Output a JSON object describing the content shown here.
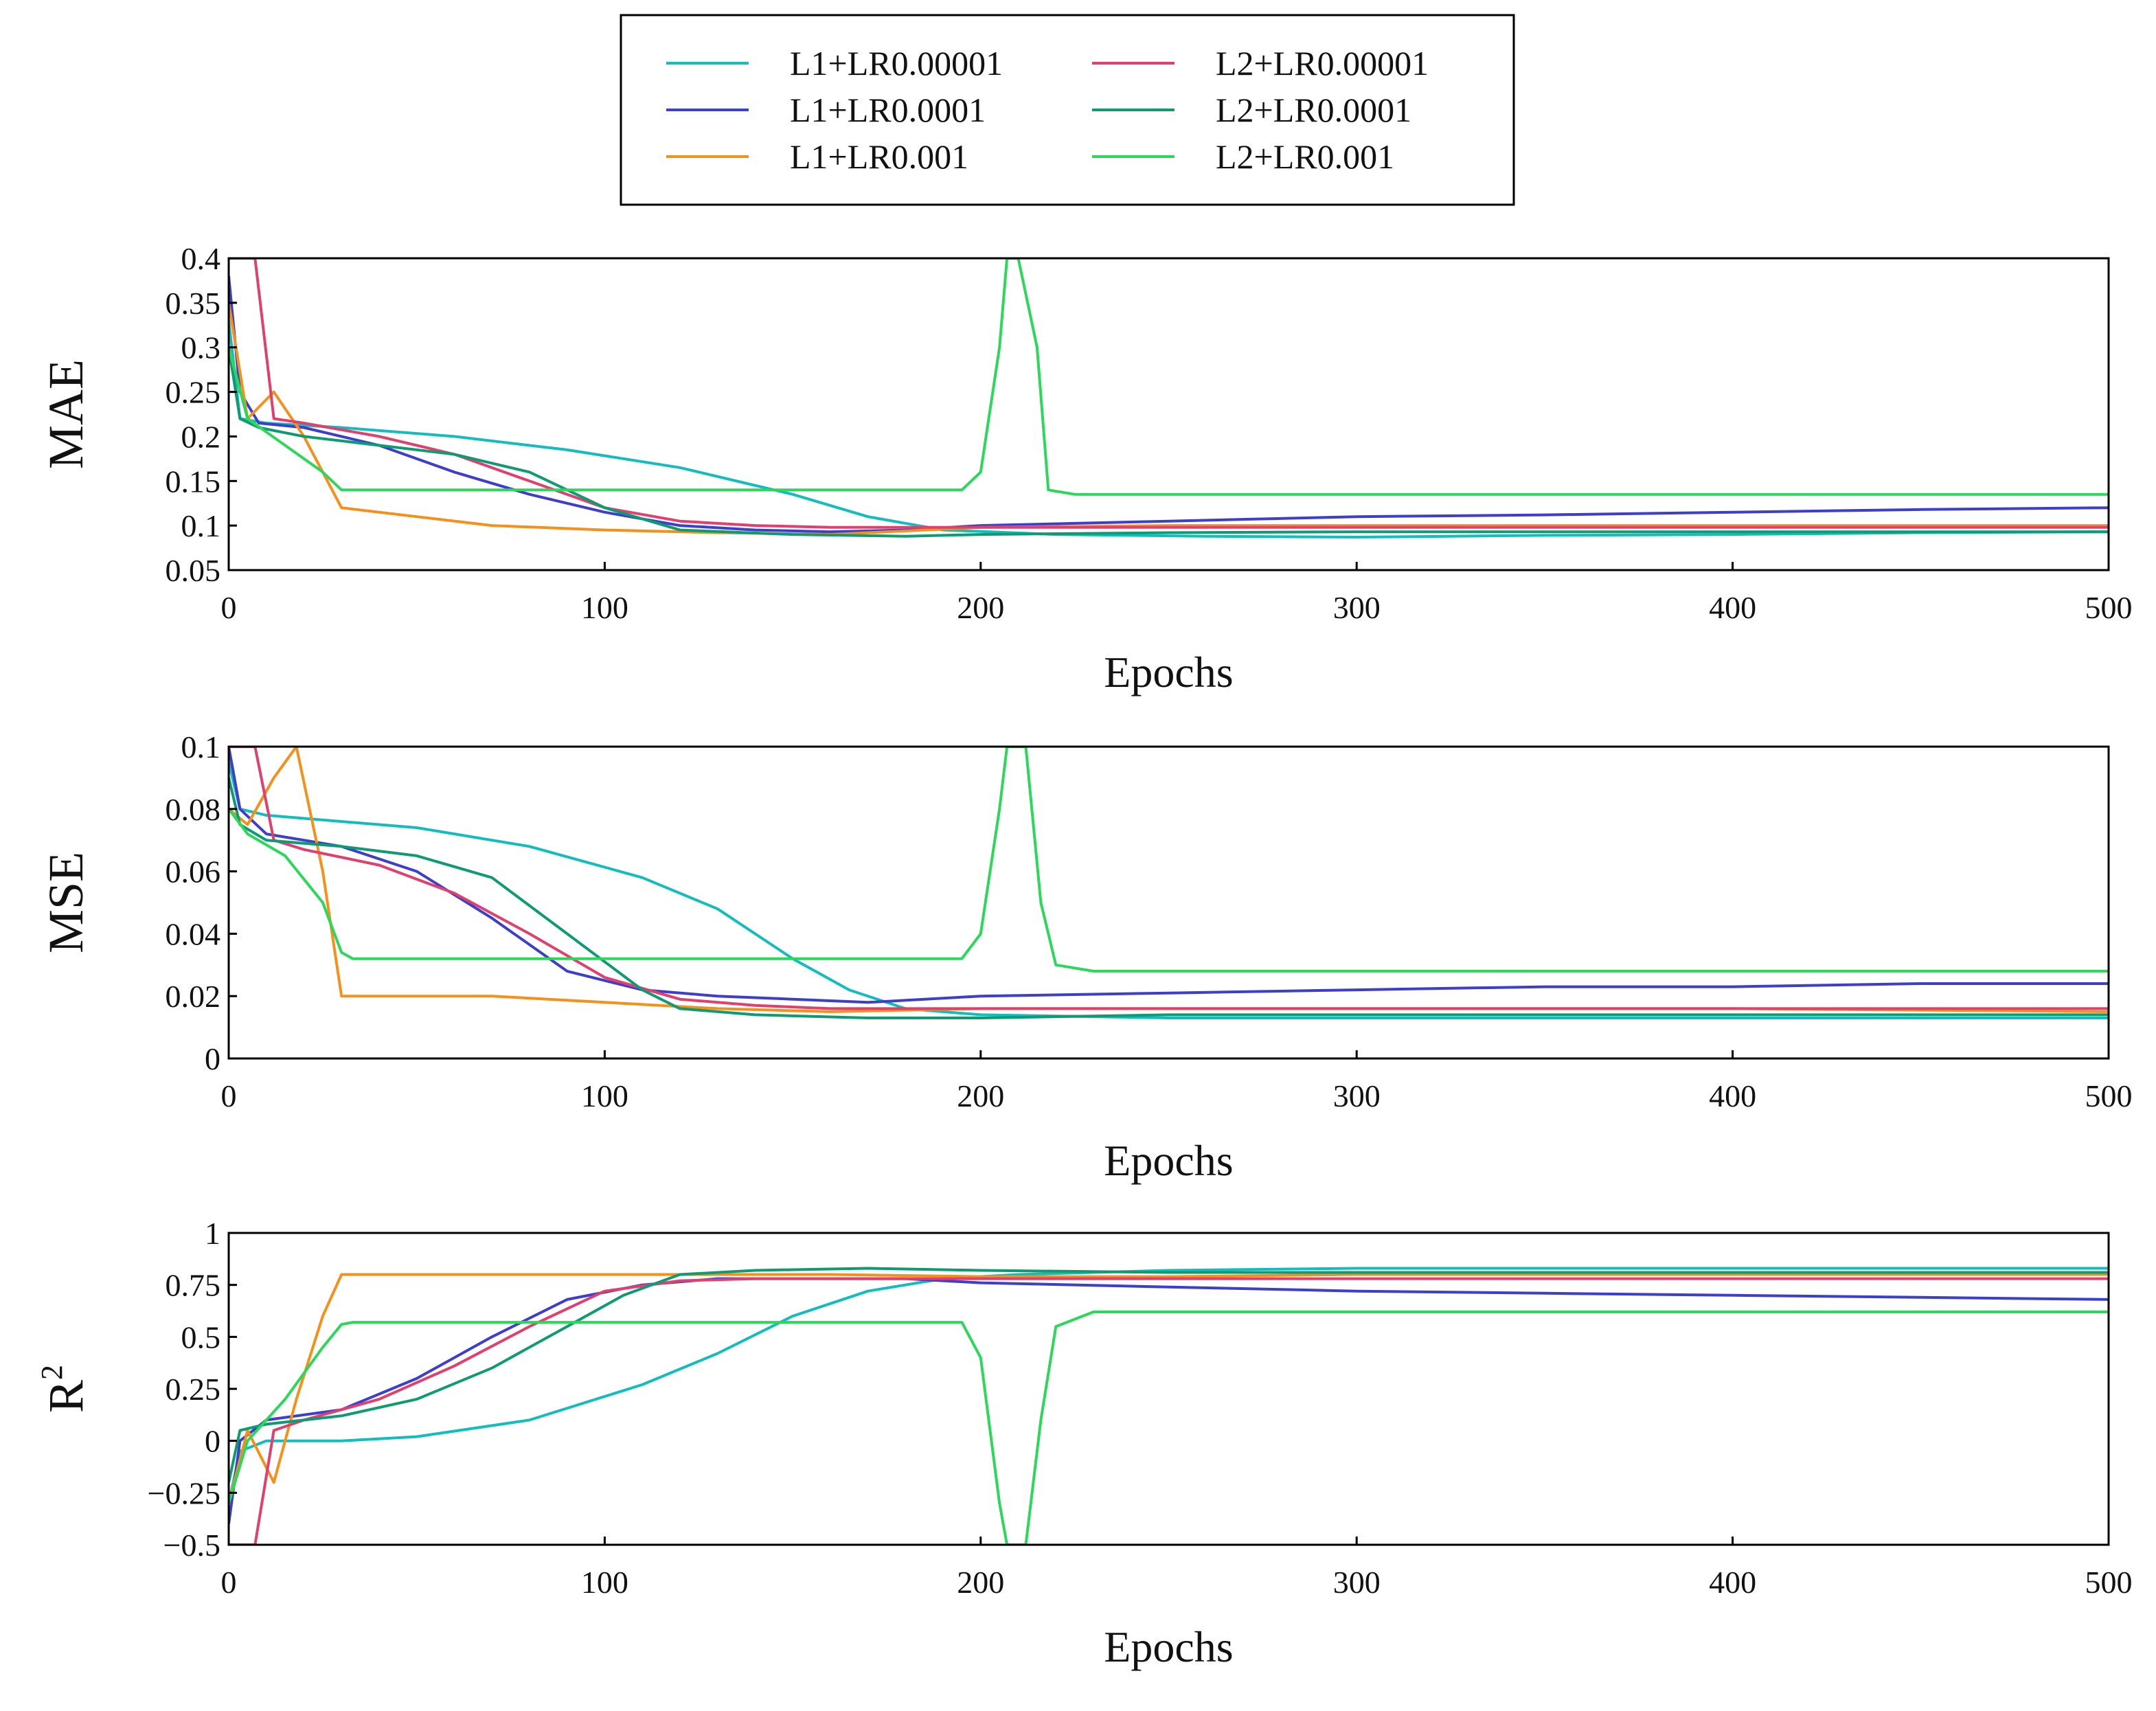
{
  "legend": {
    "entries": [
      {
        "label": "L1+LR0.00001",
        "color": "#14BDBD"
      },
      {
        "label": "L1+LR0.0001",
        "color": "#3E3ECC"
      },
      {
        "label": "L1+LR0.001",
        "color": "#F5901A"
      },
      {
        "label": "L2+LR0.00001",
        "color": "#E0406E"
      },
      {
        "label": "L2+LR0.0001",
        "color": "#0E9B73"
      },
      {
        "label": "L2+LR0.001",
        "color": "#2CD85A"
      }
    ]
  },
  "chart_data": [
    {
      "type": "line",
      "title": "",
      "xlabel": "Epochs",
      "ylabel": "MAE",
      "xlim": [
        0,
        500
      ],
      "ylim": [
        0.05,
        0.4
      ],
      "xticks": [
        "0",
        "100",
        "200",
        "300",
        "400",
        "500"
      ],
      "yticks": [
        "0.05",
        "0.1",
        "0.15",
        "0.2",
        "0.25",
        "0.3",
        "0.35",
        "0.4"
      ],
      "series": [
        {
          "name": "L1+LR0.00001",
          "x": [
            0,
            3,
            10,
            30,
            60,
            90,
            120,
            150,
            170,
            190,
            220,
            260,
            300,
            350,
            400,
            450,
            500
          ],
          "values": [
            0.33,
            0.22,
            0.215,
            0.21,
            0.2,
            0.185,
            0.165,
            0.135,
            0.11,
            0.095,
            0.09,
            0.088,
            0.087,
            0.089,
            0.09,
            0.092,
            0.093
          ]
        },
        {
          "name": "L1+LR0.0001",
          "x": [
            0,
            3,
            8,
            20,
            40,
            60,
            80,
            100,
            120,
            140,
            160,
            180,
            200,
            250,
            300,
            350,
            400,
            450,
            500
          ],
          "values": [
            0.38,
            0.25,
            0.215,
            0.21,
            0.19,
            0.16,
            0.135,
            0.115,
            0.1,
            0.095,
            0.093,
            0.095,
            0.1,
            0.105,
            0.11,
            0.112,
            0.115,
            0.118,
            0.12
          ]
        },
        {
          "name": "L1+LR0.001",
          "x": [
            0,
            5,
            12,
            20,
            30,
            50,
            70,
            100,
            130,
            160,
            200,
            250,
            300,
            400,
            500
          ],
          "values": [
            0.35,
            0.22,
            0.25,
            0.2,
            0.12,
            0.11,
            0.1,
            0.095,
            0.092,
            0.09,
            0.098,
            0.1,
            0.1,
            0.1,
            0.1
          ]
        },
        {
          "name": "L2+LR0.00001",
          "x": [
            0,
            3,
            7,
            12,
            20,
            40,
            60,
            80,
            100,
            120,
            140,
            160,
            200,
            250,
            300,
            400,
            500
          ],
          "values": [
            0.4,
            0.4,
            0.4,
            0.22,
            0.215,
            0.2,
            0.18,
            0.15,
            0.12,
            0.105,
            0.1,
            0.098,
            0.098,
            0.098,
            0.098,
            0.098,
            0.098
          ]
        },
        {
          "name": "L2+LR0.0001",
          "x": [
            0,
            3,
            8,
            20,
            40,
            60,
            80,
            100,
            120,
            150,
            180,
            200,
            250,
            300,
            400,
            500
          ],
          "values": [
            0.3,
            0.22,
            0.21,
            0.2,
            0.19,
            0.18,
            0.16,
            0.12,
            0.095,
            0.09,
            0.088,
            0.09,
            0.092,
            0.093,
            0.093,
            0.093
          ]
        },
        {
          "name": "L2+LR0.001",
          "x": [
            0,
            5,
            15,
            25,
            30,
            35,
            60,
            100,
            150,
            195,
            200,
            205,
            207,
            210,
            215,
            218,
            225,
            300,
            400,
            500
          ],
          "values": [
            0.3,
            0.22,
            0.19,
            0.16,
            0.14,
            0.14,
            0.14,
            0.14,
            0.14,
            0.14,
            0.16,
            0.3,
            0.4,
            0.4,
            0.3,
            0.14,
            0.135,
            0.135,
            0.135,
            0.135
          ]
        }
      ]
    },
    {
      "type": "line",
      "title": "",
      "xlabel": "Epochs",
      "ylabel": "MSE",
      "xlim": [
        0,
        500
      ],
      "ylim": [
        0,
        0.1
      ],
      "xticks": [
        "0",
        "100",
        "200",
        "300",
        "400",
        "500"
      ],
      "yticks": [
        "0",
        "0.02",
        "0.04",
        "0.06",
        "0.08",
        "0.1"
      ],
      "series": [
        {
          "name": "L1+LR0.00001",
          "x": [
            0,
            3,
            10,
            30,
            50,
            80,
            110,
            130,
            150,
            165,
            180,
            200,
            250,
            300,
            400,
            500
          ],
          "values": [
            0.095,
            0.08,
            0.078,
            0.076,
            0.074,
            0.068,
            0.058,
            0.048,
            0.032,
            0.022,
            0.016,
            0.014,
            0.013,
            0.013,
            0.013,
            0.013
          ]
        },
        {
          "name": "L1+LR0.0001",
          "x": [
            0,
            3,
            10,
            30,
            50,
            70,
            90,
            110,
            130,
            150,
            170,
            200,
            250,
            300,
            350,
            400,
            450,
            500
          ],
          "values": [
            0.1,
            0.08,
            0.072,
            0.068,
            0.06,
            0.045,
            0.028,
            0.022,
            0.02,
            0.019,
            0.018,
            0.02,
            0.021,
            0.022,
            0.023,
            0.023,
            0.024,
            0.024
          ]
        },
        {
          "name": "L1+LR0.001",
          "x": [
            0,
            5,
            12,
            18,
            25,
            30,
            50,
            70,
            100,
            130,
            160,
            200,
            250,
            300,
            400,
            500
          ],
          "values": [
            0.08,
            0.075,
            0.09,
            0.1,
            0.06,
            0.02,
            0.02,
            0.02,
            0.018,
            0.016,
            0.015,
            0.016,
            0.016,
            0.016,
            0.016,
            0.015
          ]
        },
        {
          "name": "L2+LR0.00001",
          "x": [
            0,
            3,
            7,
            12,
            20,
            40,
            60,
            80,
            100,
            120,
            140,
            160,
            200,
            250,
            300,
            400,
            500
          ],
          "values": [
            0.1,
            0.1,
            0.1,
            0.07,
            0.067,
            0.062,
            0.053,
            0.04,
            0.026,
            0.019,
            0.017,
            0.016,
            0.016,
            0.016,
            0.016,
            0.016,
            0.016
          ]
        },
        {
          "name": "L2+LR0.0001",
          "x": [
            0,
            3,
            10,
            30,
            50,
            70,
            90,
            110,
            120,
            140,
            170,
            200,
            250,
            300,
            400,
            500
          ],
          "values": [
            0.09,
            0.075,
            0.07,
            0.068,
            0.065,
            0.058,
            0.04,
            0.022,
            0.016,
            0.014,
            0.013,
            0.013,
            0.014,
            0.014,
            0.014,
            0.014
          ]
        },
        {
          "name": "L2+LR0.001",
          "x": [
            0,
            5,
            15,
            25,
            30,
            33,
            60,
            100,
            150,
            195,
            200,
            205,
            207,
            212,
            216,
            220,
            230,
            300,
            400,
            500
          ],
          "values": [
            0.08,
            0.072,
            0.065,
            0.05,
            0.034,
            0.032,
            0.032,
            0.032,
            0.032,
            0.032,
            0.04,
            0.08,
            0.1,
            0.1,
            0.05,
            0.03,
            0.028,
            0.028,
            0.028,
            0.028
          ]
        }
      ]
    },
    {
      "type": "line",
      "title": "",
      "xlabel": "Epochs",
      "ylabel": "R",
      "ylabel_superscript": "2",
      "xlim": [
        0,
        500
      ],
      "ylim": [
        -0.5,
        1
      ],
      "xticks": [
        "0",
        "100",
        "200",
        "300",
        "400",
        "500"
      ],
      "yticks": [
        "−0.5",
        "−0.25",
        "0",
        "0.25",
        "0.5",
        "0.75",
        "1"
      ],
      "series": [
        {
          "name": "L1+LR0.00001",
          "x": [
            0,
            3,
            10,
            30,
            50,
            80,
            110,
            130,
            150,
            170,
            190,
            210,
            250,
            300,
            400,
            500
          ],
          "values": [
            -0.3,
            -0.05,
            0.0,
            0.0,
            0.02,
            0.1,
            0.27,
            0.42,
            0.6,
            0.72,
            0.78,
            0.8,
            0.82,
            0.83,
            0.83,
            0.83
          ]
        },
        {
          "name": "L1+LR0.0001",
          "x": [
            0,
            3,
            10,
            30,
            50,
            70,
            90,
            110,
            130,
            150,
            180,
            200,
            250,
            300,
            350,
            400,
            450,
            500
          ],
          "values": [
            -0.4,
            0.0,
            0.1,
            0.15,
            0.3,
            0.5,
            0.68,
            0.75,
            0.78,
            0.78,
            0.78,
            0.76,
            0.74,
            0.72,
            0.71,
            0.7,
            0.69,
            0.68
          ]
        },
        {
          "name": "L1+LR0.001",
          "x": [
            0,
            5,
            12,
            18,
            25,
            30,
            50,
            70,
            100,
            130,
            160,
            200,
            250,
            300,
            400,
            500
          ],
          "values": [
            -0.3,
            0.05,
            -0.2,
            0.2,
            0.6,
            0.8,
            0.8,
            0.8,
            0.8,
            0.8,
            0.8,
            0.79,
            0.79,
            0.8,
            0.8,
            0.8
          ]
        },
        {
          "name": "L2+LR0.00001",
          "x": [
            0,
            3,
            7,
            12,
            20,
            40,
            60,
            80,
            100,
            120,
            140,
            160,
            200,
            250,
            300,
            400,
            500
          ],
          "values": [
            -0.5,
            -0.5,
            -0.5,
            0.05,
            0.1,
            0.2,
            0.36,
            0.55,
            0.72,
            0.77,
            0.78,
            0.78,
            0.78,
            0.78,
            0.78,
            0.78,
            0.78
          ]
        },
        {
          "name": "L2+LR0.0001",
          "x": [
            0,
            3,
            10,
            30,
            50,
            70,
            90,
            105,
            120,
            140,
            170,
            200,
            250,
            300,
            400,
            500
          ],
          "values": [
            -0.2,
            0.05,
            0.08,
            0.12,
            0.2,
            0.35,
            0.55,
            0.7,
            0.8,
            0.82,
            0.83,
            0.82,
            0.81,
            0.81,
            0.81,
            0.81
          ]
        },
        {
          "name": "L2+LR0.001",
          "x": [
            0,
            5,
            15,
            25,
            30,
            33,
            60,
            100,
            150,
            195,
            200,
            205,
            207,
            212,
            216,
            220,
            230,
            300,
            400,
            500
          ],
          "values": [
            -0.3,
            0.0,
            0.2,
            0.45,
            0.56,
            0.57,
            0.57,
            0.57,
            0.57,
            0.57,
            0.4,
            -0.3,
            -0.5,
            -0.5,
            0.1,
            0.55,
            0.62,
            0.62,
            0.62,
            0.62
          ]
        }
      ]
    }
  ]
}
